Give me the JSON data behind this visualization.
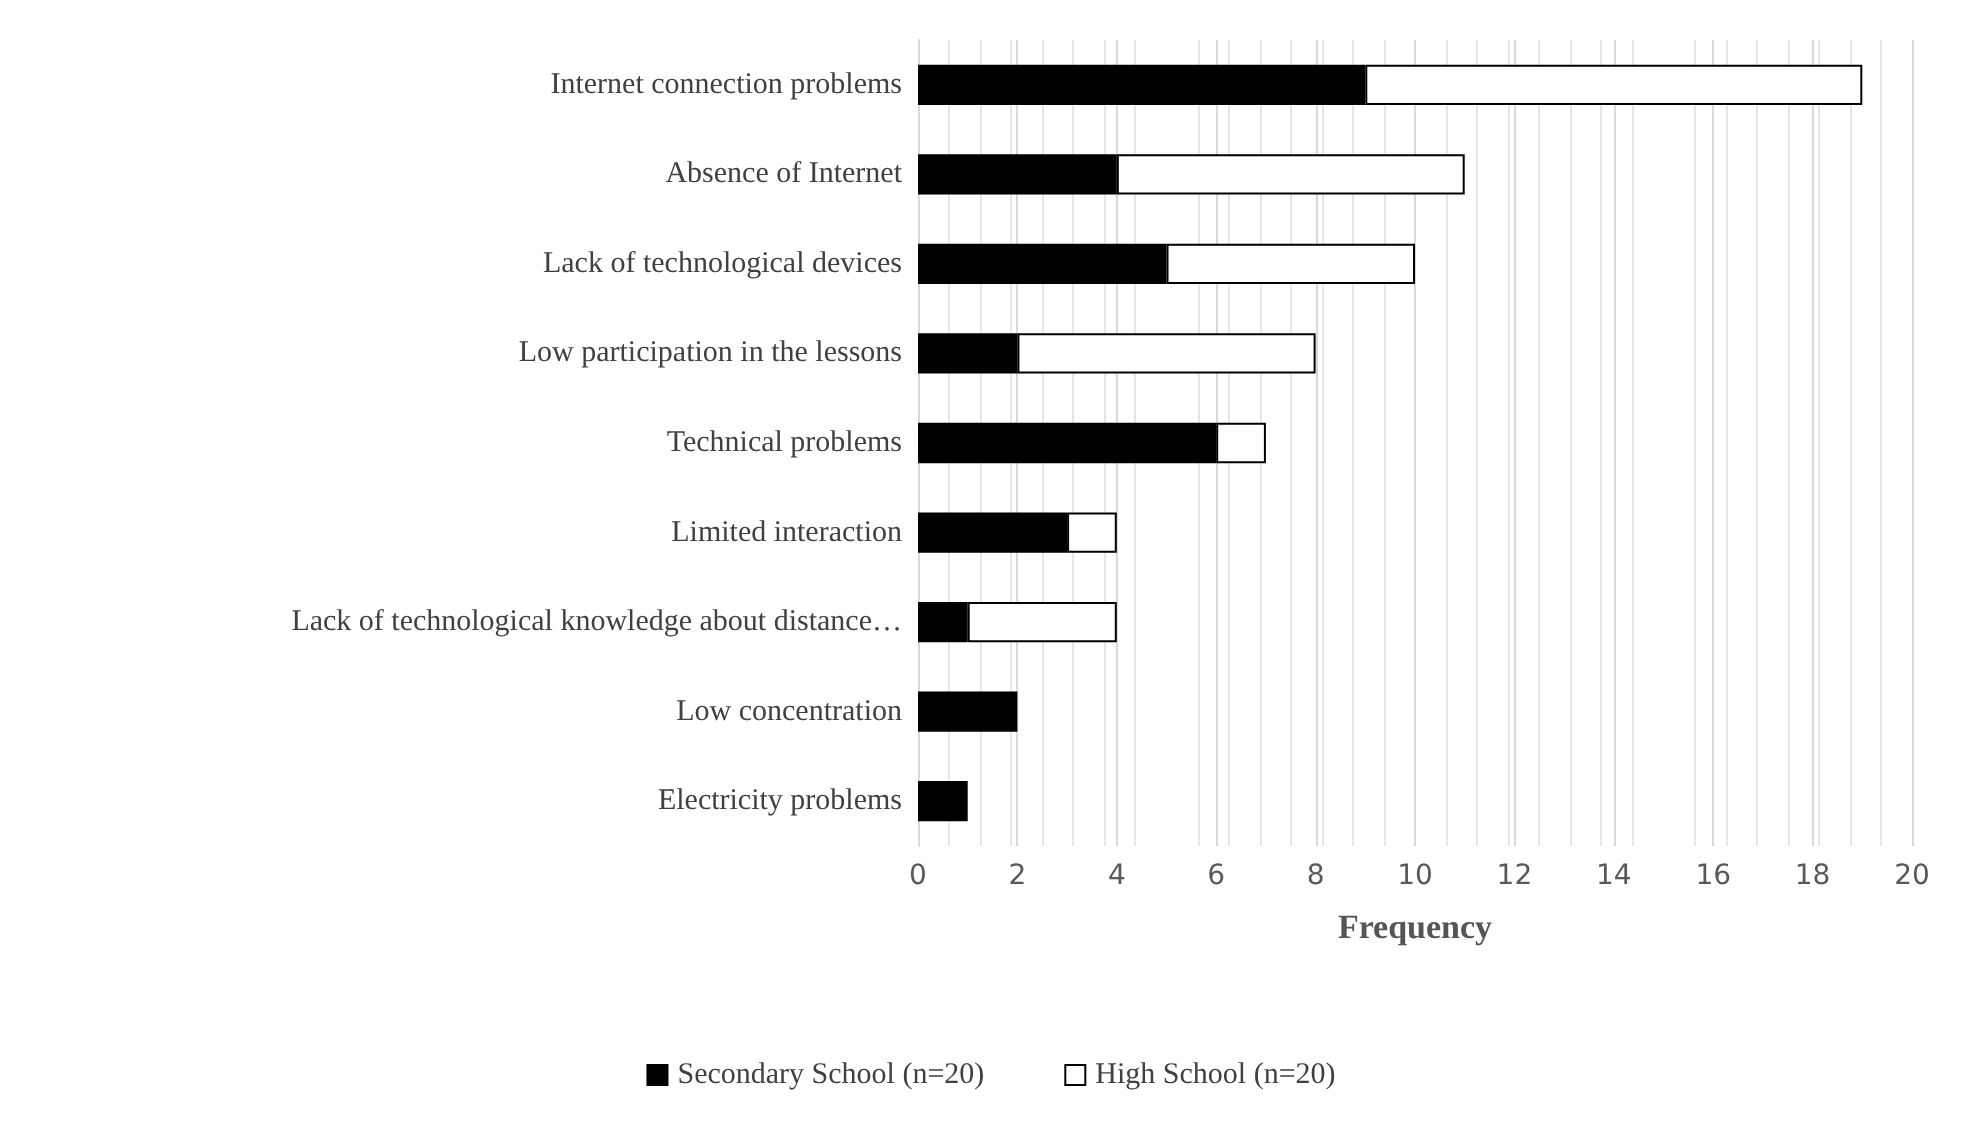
{
  "chart_data": {
    "type": "bar",
    "orientation": "horizontal",
    "stacked": true,
    "xlabel": "Frequency",
    "categories": [
      "Internet connection problems",
      "Absence of Internet",
      "Lack of technological devices",
      "Low participation in the lessons",
      "Technical problems",
      "Limited interaction",
      "Lack of technological knowledge about distance…",
      "Low concentration",
      "Electricity problems"
    ],
    "series": [
      {
        "name": "Secondary School (n=20)",
        "color": "#000000",
        "values": [
          9,
          4,
          5,
          2,
          6,
          3,
          1,
          2,
          1
        ]
      },
      {
        "name": "High School (n=20)",
        "color": "#ffffff",
        "values": [
          10,
          7,
          5,
          6,
          1,
          1,
          3,
          0,
          0
        ]
      }
    ],
    "xlim": [
      0,
      20
    ],
    "xticks": [
      0,
      2,
      4,
      6,
      8,
      10,
      12,
      14,
      16,
      18,
      20
    ],
    "grid": "x",
    "legend": "bottom"
  }
}
